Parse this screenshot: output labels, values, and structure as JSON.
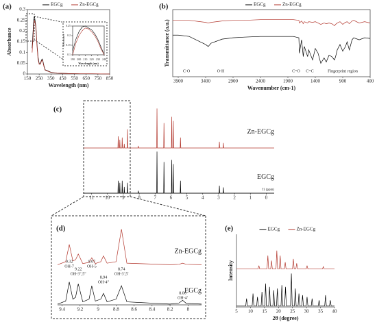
{
  "chart_data": [
    {
      "type": "line",
      "panel_label": "(a)",
      "x_label": "Wavelength (nm)",
      "y_label": "Absorbance",
      "frame": "box",
      "legend": true,
      "xlim": [
        150,
        850
      ],
      "xticks": [
        150,
        250,
        350,
        450,
        550,
        650,
        750,
        850
      ],
      "ylim": [
        0,
        0.3
      ],
      "yticks": [
        0,
        0.05,
        0.1,
        0.15,
        0.2,
        0.25,
        0.3
      ],
      "series": [
        {
          "name": "EGCg",
          "color": "#000000",
          "x": [
            190,
            200,
            205,
            210,
            215,
            220,
            225,
            230,
            240,
            250,
            260,
            270,
            275,
            280,
            290,
            300,
            350,
            400,
            500,
            600,
            700,
            850
          ],
          "values": [
            0.12,
            0.22,
            0.26,
            0.27,
            0.25,
            0.23,
            0.2,
            0.15,
            0.08,
            0.05,
            0.05,
            0.065,
            0.07,
            0.065,
            0.04,
            0.02,
            0.008,
            0.004,
            0.002,
            0.001,
            0.001,
            0
          ]
        },
        {
          "name": "Zn-EGCg",
          "color": "#b2352b",
          "x": [
            190,
            200,
            205,
            210,
            215,
            220,
            225,
            230,
            240,
            250,
            260,
            270,
            275,
            280,
            290,
            300,
            350,
            400,
            500,
            600,
            700,
            850
          ],
          "values": [
            0.1,
            0.19,
            0.23,
            0.25,
            0.24,
            0.22,
            0.19,
            0.14,
            0.07,
            0.045,
            0.045,
            0.06,
            0.065,
            0.06,
            0.035,
            0.018,
            0.007,
            0.004,
            0.002,
            0.001,
            0.001,
            0
          ]
        }
      ]
    },
    {
      "type": "line",
      "x_label": "Wavelength (nm)",
      "y_label": "Absorbance",
      "frame": "box",
      "xlim": [
        190,
        240
      ],
      "xticks": [
        190,
        200,
        210,
        220,
        230,
        240
      ],
      "ylim": [
        0.1,
        0.25
      ],
      "yticks": [
        0.1,
        0.15,
        0.2,
        0.25
      ],
      "series": [
        {
          "name": "EGCg",
          "color": "#000000",
          "x": [
            190,
            195,
            200,
            205,
            210,
            215,
            220,
            225,
            230,
            235,
            240
          ],
          "values": [
            0.12,
            0.18,
            0.22,
            0.245,
            0.25,
            0.24,
            0.23,
            0.21,
            0.18,
            0.14,
            0.1
          ]
        },
        {
          "name": "Zn-EGCg",
          "color": "#b2352b",
          "x": [
            190,
            195,
            200,
            205,
            210,
            215,
            220,
            225,
            230,
            235,
            240
          ],
          "values": [
            0.1,
            0.16,
            0.2,
            0.225,
            0.24,
            0.235,
            0.22,
            0.2,
            0.17,
            0.13,
            0.1
          ]
        }
      ]
    },
    {
      "type": "line",
      "panel_label": "(b)",
      "x_label": "Wavenumber (cm-1)",
      "y_label": "Transmittance (a.u.)",
      "frame": "box",
      "legend": true,
      "xlim": [
        4000,
        400
      ],
      "xticks": [
        3900,
        3400,
        2900,
        2400,
        1900,
        1400,
        900,
        400
      ],
      "ylim": [
        0,
        100
      ],
      "annotations": [
        "C-O",
        "O-H",
        "C=O",
        "C=C",
        "Fingerprint region"
      ],
      "series": [
        {
          "name": "EGCg",
          "color": "#000000",
          "x": [
            4000,
            3900,
            3700,
            3500,
            3400,
            3353,
            3300,
            3100,
            2900,
            2700,
            2400,
            2100,
            1900,
            1800,
            1700,
            1690,
            1650,
            1620,
            1600,
            1540,
            1520,
            1450,
            1400,
            1350,
            1300,
            1240,
            1200,
            1150,
            1100,
            1050,
            1030,
            1000,
            950,
            900,
            850,
            820,
            780,
            730,
            700,
            600,
            500,
            400
          ],
          "values": [
            62,
            62,
            60,
            52,
            48,
            45,
            50,
            56,
            58,
            59,
            60,
            60,
            60,
            60,
            58,
            35,
            55,
            30,
            45,
            30,
            40,
            25,
            42,
            35,
            20,
            28,
            22,
            32,
            30,
            25,
            30,
            40,
            48,
            38,
            45,
            52,
            40,
            55,
            58,
            55,
            58,
            57
          ]
        },
        {
          "name": "Zn-EGCg",
          "color": "#b2352b",
          "x": [
            4000,
            3900,
            3700,
            3500,
            3400,
            3353,
            3300,
            3100,
            2900,
            2700,
            2400,
            2100,
            1900,
            1800,
            1700,
            1690,
            1650,
            1620,
            1600,
            1540,
            1520,
            1450,
            1400,
            1350,
            1300,
            1240,
            1200,
            1150,
            1100,
            1050,
            1030,
            1000,
            950,
            900,
            850,
            820,
            780,
            730,
            700,
            600,
            500,
            400
          ],
          "values": [
            84,
            84,
            84,
            82,
            81,
            80,
            81,
            83,
            84,
            84,
            85,
            85,
            85,
            85,
            84,
            80,
            83,
            79,
            82,
            80,
            82,
            81,
            82,
            80,
            78,
            80,
            79,
            80,
            79,
            76,
            78,
            80,
            82,
            78,
            81,
            82,
            79,
            83,
            84,
            80,
            82,
            80
          ]
        }
      ]
    },
    {
      "type": "line",
      "panel_label": "(c)",
      "x_label": "f1 (ppm)",
      "frame": "bottom",
      "series_labels": true,
      "xlim": [
        11.5,
        -0.5
      ],
      "xticks": [
        11,
        10,
        9,
        8,
        7,
        6,
        5,
        4,
        3,
        2,
        1,
        0
      ],
      "series": [
        {
          "name": "EGCg",
          "color": "#000000",
          "x": [
            11.5,
            9.34,
            9.32,
            9.3,
            9.24,
            9.22,
            9.2,
            9.09,
            9.07,
            9.05,
            8.96,
            8.94,
            8.92,
            8.76,
            8.74,
            8.72,
            8.08,
            8.06,
            8.04,
            6.9,
            6.88,
            6.86,
            6.46,
            6.44,
            6.42,
            5.97,
            5.95,
            5.93,
            5.87,
            5.85,
            5.83,
            5.42,
            5.4,
            5.38,
            2.97,
            2.95,
            2.93,
            2.72,
            2.7,
            2.68,
            -0.5
          ],
          "values": [
            0,
            0,
            30,
            0,
            0,
            25,
            0,
            0,
            30,
            0,
            0,
            15,
            0,
            0,
            25,
            0,
            0,
            6,
            0,
            0,
            100,
            0,
            0,
            75,
            0,
            0,
            80,
            0,
            0,
            70,
            0,
            0,
            30,
            0,
            0,
            18,
            0,
            0,
            14,
            0,
            0
          ]
        },
        {
          "name": "Zn-EGCg",
          "color": "#b2352b",
          "x": [
            11.5,
            9.34,
            9.32,
            9.3,
            9.24,
            9.22,
            9.2,
            9.09,
            9.07,
            9.05,
            8.96,
            8.94,
            8.92,
            8.76,
            8.74,
            8.72,
            8.08,
            8.06,
            8.04,
            6.9,
            6.88,
            6.86,
            6.46,
            6.44,
            6.42,
            5.97,
            5.95,
            5.93,
            5.87,
            5.85,
            5.83,
            5.42,
            5.4,
            5.38,
            2.97,
            2.95,
            2.93,
            2.72,
            2.7,
            2.68,
            -0.5
          ],
          "values": [
            0,
            0,
            28,
            0,
            0,
            20,
            0,
            0,
            25,
            0,
            0,
            10,
            0,
            0,
            45,
            0,
            0,
            5,
            0,
            0,
            95,
            0,
            0,
            60,
            0,
            0,
            75,
            0,
            0,
            65,
            0,
            0,
            25,
            0,
            0,
            15,
            0,
            0,
            12,
            0,
            0
          ]
        }
      ]
    },
    {
      "type": "line",
      "panel_label": "(d)",
      "frame": "bottom",
      "series_labels": true,
      "xlim": [
        9.45,
        7.85
      ],
      "xticks": [
        9.4,
        9.2,
        9.0,
        8.8,
        8.6,
        8.4,
        8.2,
        8.0
      ],
      "peaks": [
        {
          "shift": 9.32,
          "label": "OH-7"
        },
        {
          "shift": 9.22,
          "label": "OH-3″,5″"
        },
        {
          "shift": 9.07,
          "label": "OH-5"
        },
        {
          "shift": 8.94,
          "label": "OH-4″"
        },
        {
          "shift": 8.74,
          "label": "OH-3′,5′"
        },
        {
          "shift": 8.06,
          "label": "OH-4′"
        }
      ],
      "series": [
        {
          "name": "EGCg",
          "color": "#000000",
          "x": [
            9.45,
            9.36,
            9.32,
            9.28,
            9.25,
            9.22,
            9.17,
            9.1,
            9.07,
            9.03,
            8.97,
            8.94,
            8.9,
            8.8,
            8.74,
            8.68,
            8.2,
            8.1,
            8.06,
            8.02,
            7.85
          ],
          "values": [
            2,
            10,
            60,
            15,
            20,
            55,
            8,
            15,
            50,
            10,
            15,
            30,
            8,
            15,
            50,
            8,
            2,
            5,
            12,
            4,
            2
          ]
        },
        {
          "name": "Zn-EGCg",
          "color": "#b2352b",
          "x": [
            9.45,
            9.36,
            9.32,
            9.28,
            9.25,
            9.22,
            9.17,
            9.1,
            9.07,
            9.03,
            8.97,
            8.94,
            8.9,
            8.8,
            8.74,
            8.68,
            8.2,
            8.1,
            8.06,
            8.02,
            7.85
          ],
          "values": [
            2,
            10,
            55,
            12,
            15,
            30,
            5,
            8,
            20,
            5,
            10,
            25,
            6,
            10,
            95,
            6,
            2,
            3,
            6,
            3,
            2
          ]
        }
      ]
    },
    {
      "type": "line",
      "panel_label": "(e)",
      "x_label": "2θ (degree)",
      "y_label": "Intensity",
      "frame": "left-bottom",
      "legend": true,
      "xlim": [
        5,
        40
      ],
      "xticks": [
        5,
        10,
        15,
        20,
        25,
        30,
        35,
        40
      ],
      "series": [
        {
          "name": "EGCg",
          "color": "#000000",
          "x": [
            5,
            8.3,
            8.6,
            8.9,
            10.6,
            10.9,
            11.2,
            12.2,
            12.5,
            12.8,
            13.8,
            14.1,
            14.4,
            15.1,
            15.4,
            15.7,
            16.5,
            16.8,
            17.1,
            18.0,
            18.3,
            18.6,
            19.3,
            19.6,
            19.9,
            20.9,
            21.2,
            21.5,
            22.2,
            22.5,
            22.8,
            24.3,
            24.6,
            24.9,
            25.7,
            26.0,
            26.3,
            27.0,
            27.3,
            27.6,
            28.3,
            28.6,
            28.9,
            29.9,
            30.2,
            30.5,
            31.7,
            32.0,
            32.3,
            34.2,
            34.5,
            34.8,
            36.5,
            36.8,
            37.1,
            38.2,
            38.5,
            38.8,
            40
          ],
          "values": [
            3,
            3,
            25,
            3,
            3,
            40,
            3,
            3,
            30,
            3,
            3,
            45,
            3,
            3,
            70,
            3,
            3,
            60,
            3,
            3,
            50,
            3,
            3,
            55,
            3,
            3,
            65,
            3,
            3,
            60,
            3,
            3,
            100,
            3,
            3,
            55,
            3,
            3,
            40,
            3,
            3,
            35,
            3,
            3,
            30,
            3,
            3,
            25,
            3,
            3,
            20,
            3,
            3,
            35,
            3,
            3,
            20,
            3,
            3
          ]
        },
        {
          "name": "Zn-EGCg",
          "color": "#b2352b",
          "x": [
            5,
            12.7,
            13.0,
            13.3,
            15.9,
            16.2,
            16.5,
            17.2,
            17.5,
            17.8,
            19.1,
            19.4,
            19.7,
            20.3,
            20.6,
            20.9,
            22.1,
            22.4,
            22.7,
            25.0,
            25.3,
            25.6,
            26.2,
            26.5,
            26.8,
            29.9,
            30.2,
            30.5,
            35.7,
            36.0,
            36.3,
            40
          ],
          "values": [
            5,
            5,
            15,
            5,
            5,
            45,
            5,
            5,
            30,
            5,
            5,
            60,
            5,
            5,
            45,
            5,
            5,
            25,
            5,
            5,
            35,
            5,
            5,
            22,
            5,
            5,
            15,
            5,
            5,
            12,
            5,
            5
          ]
        }
      ]
    }
  ]
}
